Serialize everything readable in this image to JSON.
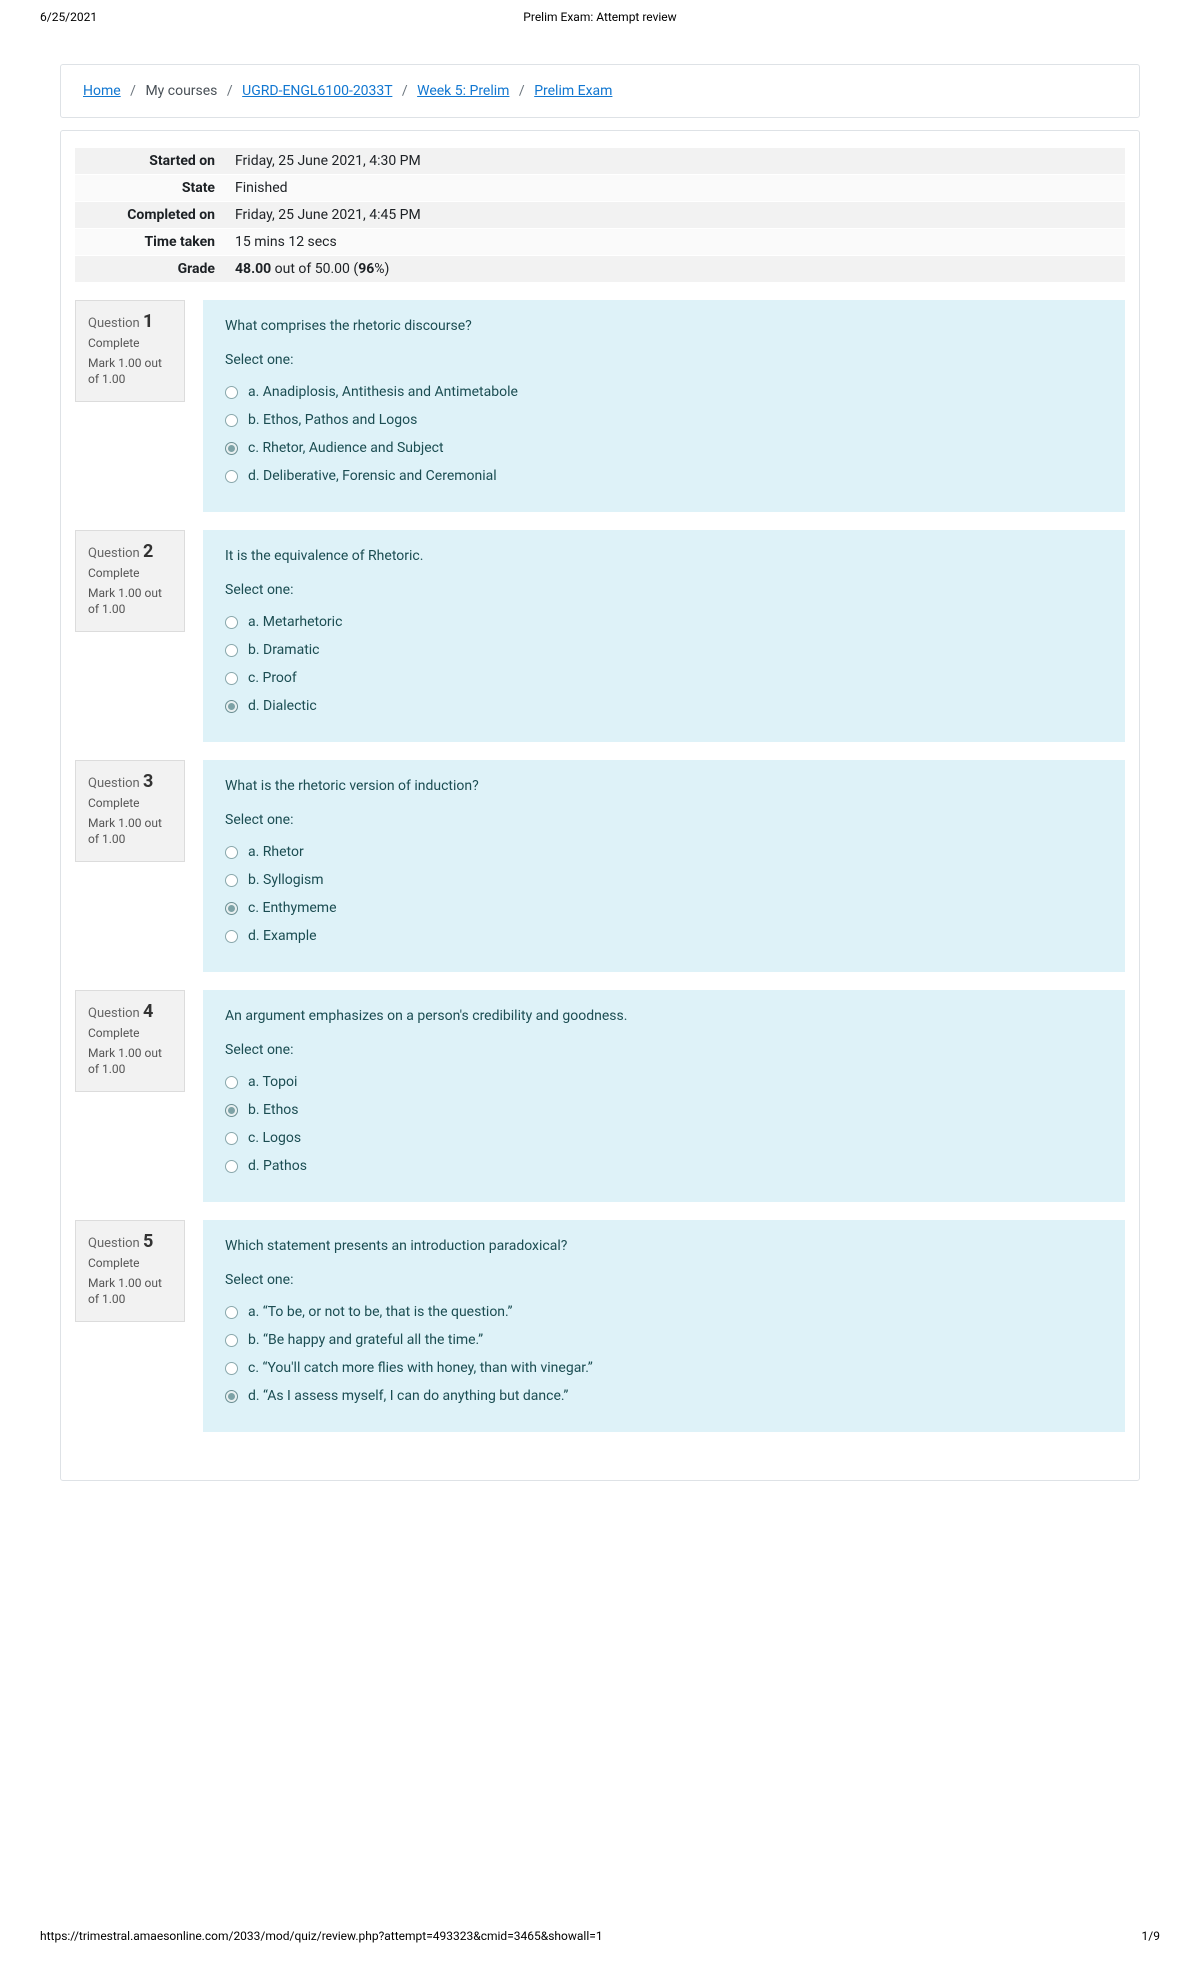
{
  "print": {
    "date": "6/25/2021",
    "title": "Prelim Exam: Attempt review",
    "url": "https://trimestral.amaesonline.com/2033/mod/quiz/review.php?attempt=493323&cmid=3465&showall=1",
    "page": "1/9"
  },
  "breadcrumb": {
    "home": "Home",
    "mycourses": "My courses",
    "course": "UGRD-ENGL6100-2033T",
    "week": "Week 5: Prelim",
    "exam": "Prelim Exam"
  },
  "summary": {
    "labels": {
      "started": "Started on",
      "state": "State",
      "completed": "Completed on",
      "time": "Time taken",
      "grade": "Grade"
    },
    "started": "Friday, 25 June 2021, 4:30 PM",
    "state": "Finished",
    "completed": "Friday, 25 June 2021, 4:45 PM",
    "time": "15 mins 12 secs",
    "grade_score": "48.00",
    "grade_out": " out of 50.00 (",
    "grade_pct": "96",
    "grade_suffix": "%)"
  },
  "questionLabel": "Question",
  "selectOne": "Select one:",
  "questions": [
    {
      "num": "1",
      "state": "Complete",
      "mark": "Mark 1.00 out of 1.00",
      "text": "What comprises the rhetoric discourse?",
      "selected": 2,
      "options": [
        "a. Anadiplosis, Antithesis and Antimetabole",
        "b. Ethos, Pathos and Logos",
        "c. Rhetor, Audience and Subject",
        "d. Deliberative, Forensic and Ceremonial"
      ]
    },
    {
      "num": "2",
      "state": "Complete",
      "mark": "Mark 1.00 out of 1.00",
      "text": "It is the equivalence of Rhetoric.",
      "selected": 3,
      "options": [
        "a. Metarhetoric",
        "b. Dramatic",
        "c. Proof",
        "d. Dialectic"
      ]
    },
    {
      "num": "3",
      "state": "Complete",
      "mark": "Mark 1.00 out of 1.00",
      "text": "What is the rhetoric version of induction?",
      "selected": 2,
      "options": [
        "a. Rhetor",
        "b. Syllogism",
        "c. Enthymeme",
        "d. Example"
      ]
    },
    {
      "num": "4",
      "state": "Complete",
      "mark": "Mark 1.00 out of 1.00",
      "text": "An argument emphasizes on a person's credibility and goodness.",
      "selected": 1,
      "options": [
        "a. Topoi",
        "b. Ethos",
        "c. Logos",
        "d. Pathos"
      ]
    },
    {
      "num": "5",
      "state": "Complete",
      "mark": "Mark 1.00 out of 1.00",
      "text": "Which statement presents an introduction paradoxical?",
      "selected": 3,
      "options": [
        "a. “To be, or not to be, that is the question.”",
        "b. “Be happy and grateful all the time.”",
        "c. “You'll catch more flies with honey, than with vinegar.”",
        "d. “As I assess myself, I can do anything but dance.”"
      ]
    }
  ]
}
